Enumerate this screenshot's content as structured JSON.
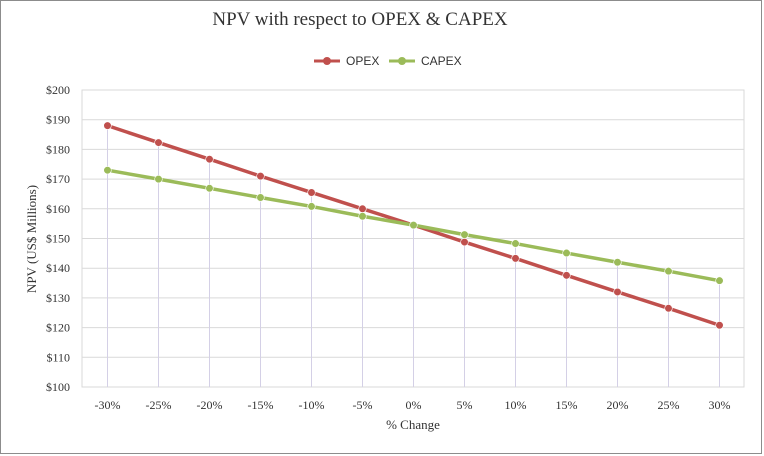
{
  "chart_data": {
    "type": "line",
    "title": "NPV with respect to OPEX & CAPEX",
    "xlabel": "% Change",
    "ylabel": "NPV (US$ Millions)",
    "categories": [
      "-30%",
      "-25%",
      "-20%",
      "-15%",
      "-10%",
      "-5%",
      "0%",
      "5%",
      "10%",
      "15%",
      "20%",
      "25%",
      "30%"
    ],
    "y_tick_labels": [
      "$100",
      "$110",
      "$120",
      "$130",
      "$140",
      "$150",
      "$160",
      "$170",
      "$180",
      "$190",
      "$200"
    ],
    "ylim": [
      100,
      200
    ],
    "grid": true,
    "legend_position": "top-center",
    "series": [
      {
        "name": "OPEX",
        "color": "#c0504d",
        "values": [
          188,
          182.3,
          176.7,
          171,
          165.5,
          160,
          154.5,
          148.8,
          143.3,
          137.6,
          132,
          126.5,
          120.8
        ]
      },
      {
        "name": "CAPEX",
        "color": "#9bbb59",
        "values": [
          173,
          170,
          166.9,
          163.8,
          160.8,
          157.5,
          154.5,
          151.3,
          148.3,
          145.1,
          142,
          139,
          135.8
        ]
      }
    ]
  }
}
